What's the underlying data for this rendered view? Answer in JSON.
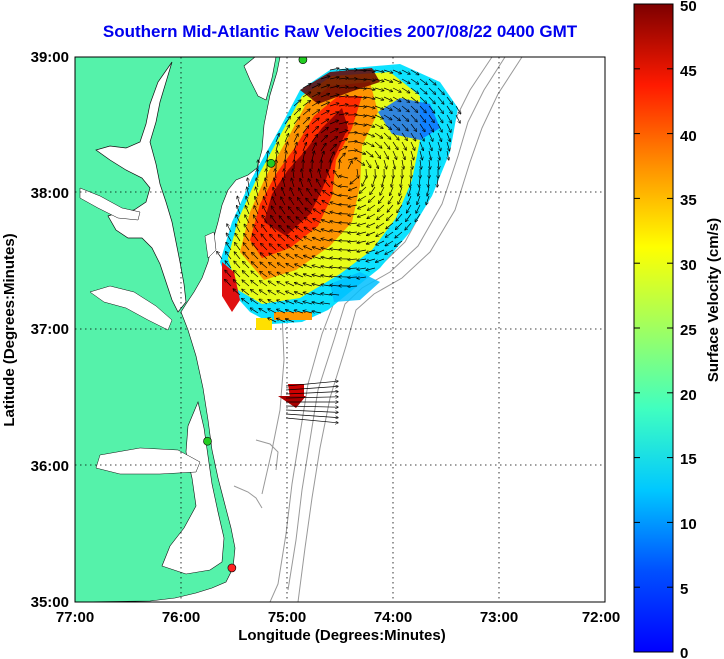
{
  "title": "Southern Mid-Atlantic Raw Velocities 2007/08/22 0400 GMT",
  "map": {
    "x_label": "Longitude (Degrees:Minutes)",
    "y_label": "Latitude (Degrees:Minutes)",
    "x_ticks": [
      "77:00",
      "76:00",
      "75:00",
      "74:00",
      "73:00",
      "72:00"
    ],
    "y_ticks": [
      "39:00",
      "38:00",
      "37:00",
      "36:00",
      "35:00"
    ],
    "lon_range": [
      -77,
      -72
    ],
    "lat_range": [
      35,
      39
    ],
    "grid": true,
    "land_color": "#55f2aa",
    "bathymetry_color": "#999999",
    "site_markers": [
      {
        "lon": -74.85,
        "lat": 38.98,
        "color": "#22cc22"
      },
      {
        "lon": -75.15,
        "lat": 38.22,
        "color": "#22cc22"
      },
      {
        "lon": -75.75,
        "lat": 36.18,
        "color": "#22cc22"
      },
      {
        "lon": -75.52,
        "lat": 35.25,
        "color": "#ff2222"
      }
    ]
  },
  "colorbar": {
    "label": "Surface Velocity (cm/s)",
    "ticks": [
      "50",
      "45",
      "40",
      "35",
      "30",
      "25",
      "20",
      "15",
      "10",
      "5",
      "0"
    ],
    "range": [
      0,
      50
    ],
    "colormap": "jet"
  }
}
